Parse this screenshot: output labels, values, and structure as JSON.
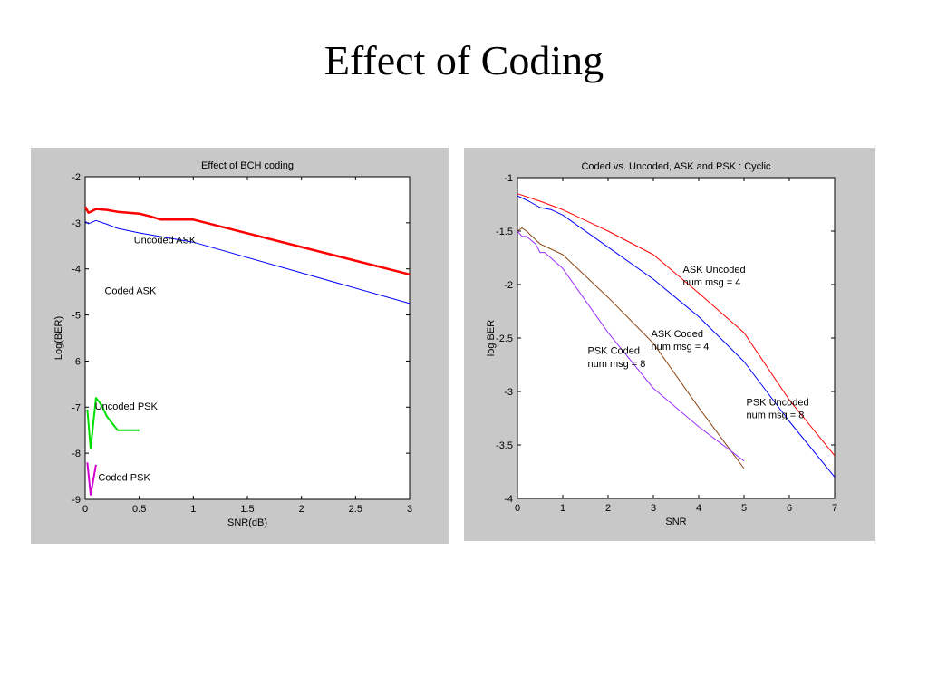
{
  "slide": {
    "title": "Effect of Coding"
  },
  "colors": {
    "panel_bg": "#c8c8c8",
    "plot_bg": "#ffffff",
    "red": "#ff0000",
    "blue": "#0000ff",
    "green": "#00e000",
    "magenta": "#d000d0",
    "purple": "#9b30ff",
    "brown": "#8b4513"
  },
  "chart_data": [
    {
      "type": "line",
      "title": "Effect of BCH coding",
      "xlabel": "SNR(dB)",
      "ylabel": "Log(BER)",
      "xlim": [
        0,
        3
      ],
      "ylim": [
        -9,
        -2
      ],
      "xticks": [
        0,
        0.5,
        1,
        1.5,
        2,
        2.5,
        3
      ],
      "xtick_labels": [
        "0",
        "0.5",
        "1",
        "1.5",
        "2",
        "2.5",
        "3"
      ],
      "yticks": [
        -9,
        -8,
        -7,
        -6,
        -5,
        -4,
        -3,
        -2
      ],
      "ytick_labels": [
        "-9",
        "-8",
        "-7",
        "-6",
        "-5",
        "-4",
        "-3",
        "-2"
      ],
      "grid": false,
      "series": [
        {
          "color": "red",
          "width": 2.5,
          "x": [
            0,
            0.03,
            0.06,
            0.1,
            0.2,
            0.3,
            0.4,
            0.5,
            0.6,
            0.7,
            0.8,
            0.9,
            1.0,
            3.0
          ],
          "y": [
            -2.65,
            -2.78,
            -2.75,
            -2.7,
            -2.72,
            -2.76,
            -2.78,
            -2.8,
            -2.86,
            -2.93,
            -2.93,
            -2.93,
            -2.93,
            -4.12
          ]
        },
        {
          "color": "blue",
          "width": 1,
          "x": [
            0,
            0.03,
            0.06,
            0.1,
            0.2,
            0.3,
            0.4,
            0.5,
            0.7,
            1.0,
            3.0
          ],
          "y": [
            -2.97,
            -3.02,
            -2.99,
            -2.95,
            -3.03,
            -3.12,
            -3.17,
            -3.22,
            -3.3,
            -3.42,
            -4.75
          ]
        },
        {
          "color": "green",
          "width": 2,
          "x": [
            0.02,
            0.05,
            0.1,
            0.15,
            0.2,
            0.3,
            0.4,
            0.5
          ],
          "y": [
            -7.05,
            -7.9,
            -6.8,
            -6.95,
            -7.2,
            -7.5,
            -7.5,
            -7.5
          ]
        },
        {
          "color": "magenta",
          "width": 2,
          "x": [
            0.02,
            0.05,
            0.1
          ],
          "y": [
            -8.2,
            -8.9,
            -8.25
          ]
        }
      ],
      "annotations": [
        {
          "text": "Uncoded ASK",
          "x": 0.45,
          "y": -3.45
        },
        {
          "text": "Coded ASK",
          "x": 0.18,
          "y": -4.55
        },
        {
          "text": "Uncoded PSK",
          "x": 0.09,
          "y": -7.05
        },
        {
          "text": "Coded PSK",
          "x": 0.12,
          "y": -8.6
        }
      ]
    },
    {
      "type": "line",
      "title": "Coded vs. Uncoded, ASK and PSK : Cyclic",
      "xlabel": "SNR",
      "ylabel": "log BER",
      "xlim": [
        0,
        7
      ],
      "ylim": [
        -4,
        -1
      ],
      "xticks": [
        0,
        1,
        2,
        3,
        4,
        5,
        6,
        7
      ],
      "xtick_labels": [
        "0",
        "1",
        "2",
        "3",
        "4",
        "5",
        "6",
        "7"
      ],
      "yticks": [
        -4,
        -3.5,
        -3,
        -2.5,
        -2,
        -1.5,
        -1
      ],
      "ytick_labels": [
        "-4",
        "-3.5",
        "-3",
        "-2.5",
        "-2",
        "-1.5",
        "-1"
      ],
      "grid": false,
      "series": [
        {
          "color": "red",
          "width": 1,
          "x": [
            0,
            0.5,
            1,
            2,
            3,
            4,
            5,
            6,
            7
          ],
          "y": [
            -1.15,
            -1.22,
            -1.3,
            -1.5,
            -1.72,
            -2.08,
            -2.45,
            -3.08,
            -3.6
          ]
        },
        {
          "color": "blue",
          "width": 1,
          "x": [
            0,
            0.25,
            0.5,
            0.75,
            1,
            2,
            3,
            4,
            5,
            6,
            7
          ],
          "y": [
            -1.17,
            -1.22,
            -1.28,
            -1.3,
            -1.35,
            -1.65,
            -1.95,
            -2.3,
            -2.72,
            -3.28,
            -3.8
          ]
        },
        {
          "color": "brown",
          "width": 1,
          "x": [
            0,
            0.1,
            0.2,
            0.5,
            1,
            2,
            3,
            4,
            5
          ],
          "y": [
            -1.5,
            -1.47,
            -1.5,
            -1.62,
            -1.72,
            -2.12,
            -2.55,
            -3.15,
            -3.72
          ]
        },
        {
          "color": "purple",
          "width": 1,
          "x": [
            0,
            0.1,
            0.2,
            0.4,
            0.5,
            0.6,
            1,
            2,
            3,
            4,
            5
          ],
          "y": [
            -1.5,
            -1.55,
            -1.55,
            -1.62,
            -1.7,
            -1.7,
            -1.85,
            -2.45,
            -2.97,
            -3.33,
            -3.65
          ]
        }
      ],
      "annotations": [
        {
          "text": "ASK Uncoded",
          "x": 3.65,
          "y": -1.89
        },
        {
          "text": "num msg = 4",
          "x": 3.65,
          "y": -2.01
        },
        {
          "text": "ASK Coded",
          "x": 2.95,
          "y": -2.49
        },
        {
          "text": "num msg = 4",
          "x": 2.95,
          "y": -2.61
        },
        {
          "text": "PSK Coded",
          "x": 1.55,
          "y": -2.65
        },
        {
          "text": "num msg = 8",
          "x": 1.55,
          "y": -2.77
        },
        {
          "text": "PSK Uncoded",
          "x": 5.05,
          "y": -3.13
        },
        {
          "text": "num msg = 8",
          "x": 5.05,
          "y": -3.25
        }
      ]
    }
  ]
}
